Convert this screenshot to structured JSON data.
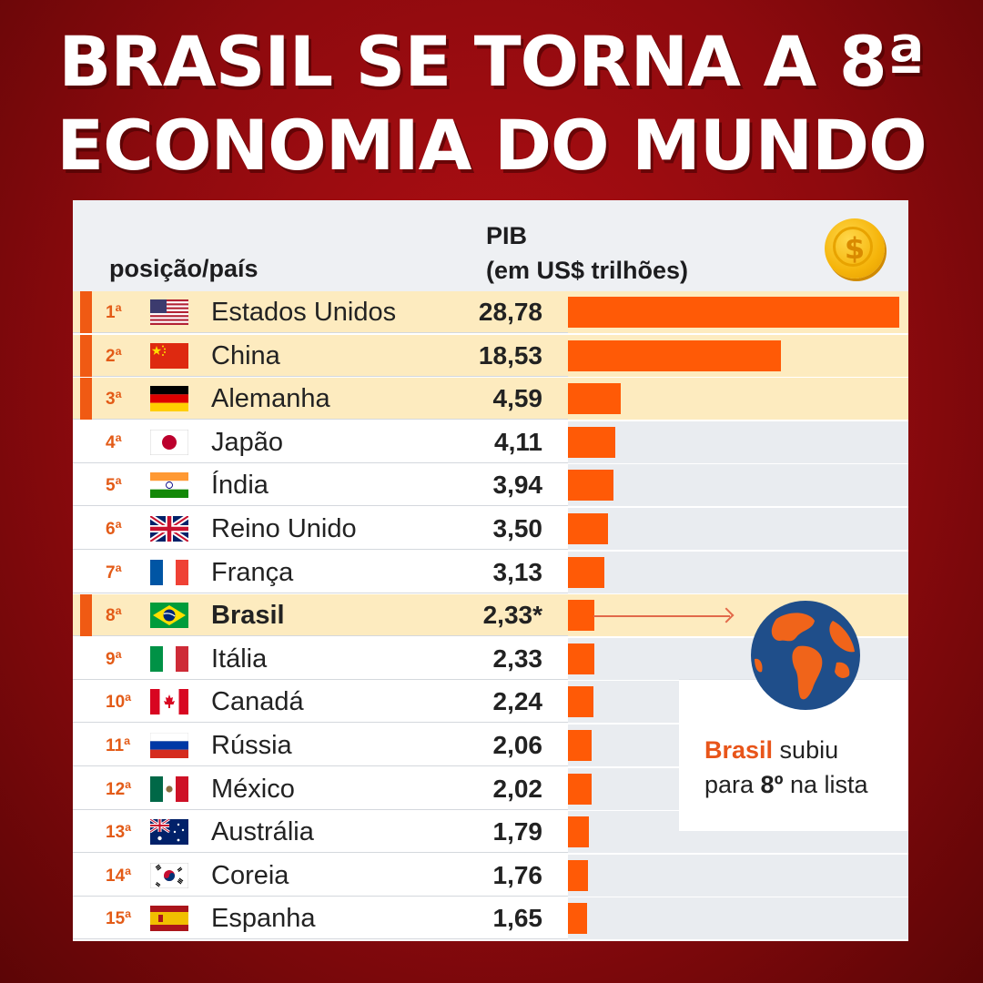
{
  "headline": {
    "line1": "BRASIL SE TORNA A 8ª",
    "line2": "ECONOMIA DO MUNDO"
  },
  "table": {
    "col_position": "posição/país",
    "col_pib_line1": "PIB",
    "col_pib_line2": "(em US$ trilhões)",
    "coin_symbol": "$"
  },
  "callout": {
    "brasil": "Brasil",
    "subiu": " subiu",
    "para": "para ",
    "num": "8º",
    "rest": " na lista"
  },
  "colors": {
    "bar": "#ff5a06",
    "highlight_row": "#fdebbf",
    "rank_text": "#e35b17",
    "background": "#b30f14"
  },
  "chart_data": {
    "type": "bar",
    "orientation": "horizontal",
    "unit": "US$ trilhões",
    "categories": [
      "Estados Unidos",
      "China",
      "Alemanha",
      "Japão",
      "Índia",
      "Reino Unido",
      "França",
      "Brasil",
      "Itália",
      "Canadá",
      "Rússia",
      "México",
      "Austrália",
      "Coreia",
      "Espanha"
    ],
    "ranks": [
      "1ª",
      "2ª",
      "3ª",
      "4ª",
      "5ª",
      "6ª",
      "7ª",
      "8ª",
      "9ª",
      "10ª",
      "11ª",
      "12ª",
      "13ª",
      "14ª",
      "15ª"
    ],
    "values": [
      28.78,
      18.53,
      4.59,
      4.11,
      3.94,
      3.5,
      3.13,
      2.33,
      2.33,
      2.24,
      2.06,
      2.02,
      1.79,
      1.76,
      1.65
    ],
    "value_labels": [
      "28,78",
      "18,53",
      "4,59",
      "4,11",
      "3,94",
      "3,50",
      "3,13",
      "2,33*",
      "2,33",
      "2,24",
      "2,06",
      "2,02",
      "1,79",
      "1,76",
      "1,65"
    ],
    "flags": [
      "us-flag-icon",
      "cn-flag-icon",
      "de-flag-icon",
      "jp-flag-icon",
      "in-flag-icon",
      "uk-flag-icon",
      "fr-flag-icon",
      "br-flag-icon",
      "it-flag-icon",
      "ca-flag-icon",
      "ru-flag-icon",
      "mx-flag-icon",
      "au-flag-icon",
      "kr-flag-icon",
      "es-flag-icon"
    ],
    "highlighted": [
      "Estados Unidos",
      "China",
      "Alemanha",
      "Brasil"
    ],
    "emphasized": [
      "Brasil"
    ],
    "xlim": [
      0,
      28.78
    ]
  }
}
